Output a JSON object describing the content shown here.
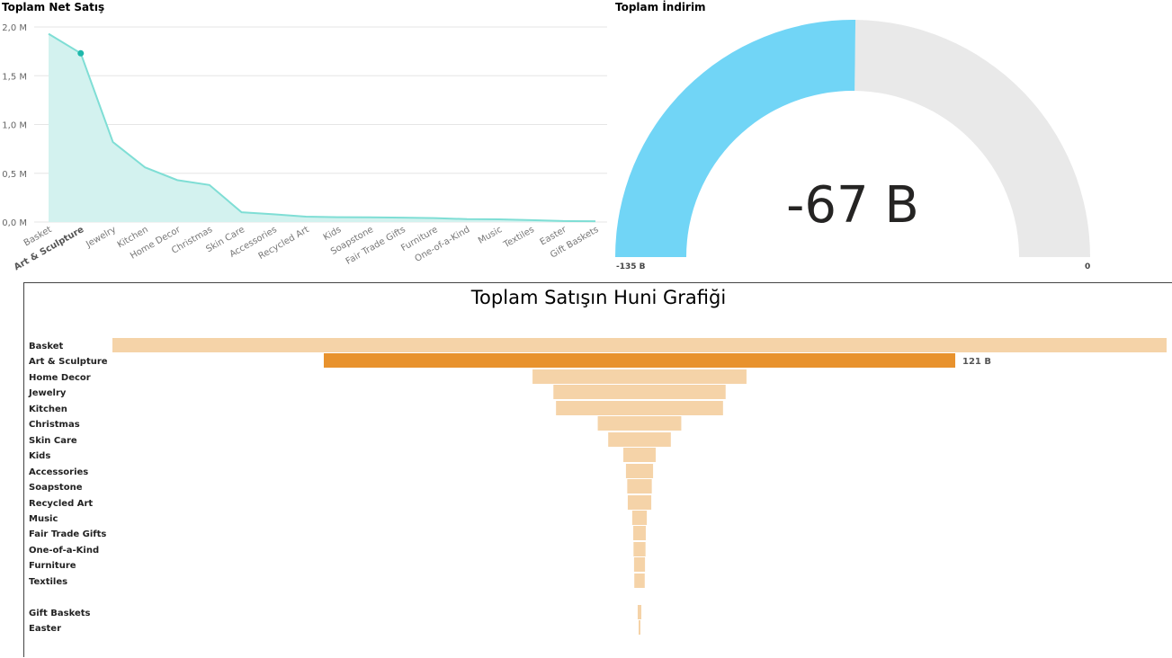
{
  "area_chart": {
    "title": "Toplam Net Satış",
    "y_ticks": [
      "2,0 M",
      "1,5 M",
      "1,0 M",
      "0,5 M",
      "0,0 M"
    ],
    "highlight_category": "Art & Sculpture",
    "colors": {
      "fill": "#d3f2ef",
      "line": "#7fded5",
      "marker": "#1fb8ab",
      "grid": "#e6e6e6"
    }
  },
  "gauge": {
    "title": "Toplam İndirim",
    "value_label": "-67 B",
    "min_label": "-135 B",
    "max_label": "0",
    "colors": {
      "fill": "#71d5f6",
      "track": "#e9e9e9"
    }
  },
  "funnel": {
    "title": "Toplam Satışın Huni Grafiği",
    "highlight_label": "121 B",
    "colors": {
      "bar": "#f5d3a8",
      "highlight": "#e8922d"
    }
  },
  "chart_data": [
    {
      "type": "area",
      "title": "Toplam Net Satış",
      "categories": [
        "Basket",
        "Art & Sculpture",
        "Jewelry",
        "Kitchen",
        "Home Decor",
        "Christmas",
        "Skin Care",
        "Accessories",
        "Recycled Art",
        "Kids",
        "Soapstone",
        "Fair Trade Gifts",
        "Furniture",
        "One-of-a-Kind",
        "Music",
        "Textiles",
        "Easter",
        "Gift Baskets"
      ],
      "values": [
        1.93,
        1.73,
        0.82,
        0.56,
        0.43,
        0.38,
        0.1,
        0.08,
        0.055,
        0.05,
        0.048,
        0.045,
        0.04,
        0.03,
        0.028,
        0.02,
        0.01,
        0.008
      ],
      "unit": "M",
      "ylim": [
        0,
        2.0
      ],
      "grid": true
    },
    {
      "type": "gauge",
      "title": "Toplam İndirim",
      "value": -67,
      "min": -135,
      "max": 0,
      "unit": "B"
    },
    {
      "type": "funnel",
      "title": "Toplam Satışın Huni Grafiği",
      "categories": [
        "Basket",
        "Art & Sculpture",
        "Home Decor",
        "Jewelry",
        "Kitchen",
        "Christmas",
        "Skin Care",
        "Kids",
        "Accessories",
        "Soapstone",
        "Recycled Art",
        "Music",
        "Fair Trade Gifts",
        "One-of-a-Kind",
        "Furniture",
        "Textiles",
        "Gift Baskets",
        "Easter"
      ],
      "values": [
        202,
        121,
        41,
        33,
        32,
        16,
        12,
        6.2,
        5.2,
        4.7,
        4.5,
        2.8,
        2.4,
        2.3,
        2.1,
        2.0,
        0.7,
        0.3
      ],
      "unit": "B",
      "highlight": "Art & Sculpture"
    }
  ]
}
